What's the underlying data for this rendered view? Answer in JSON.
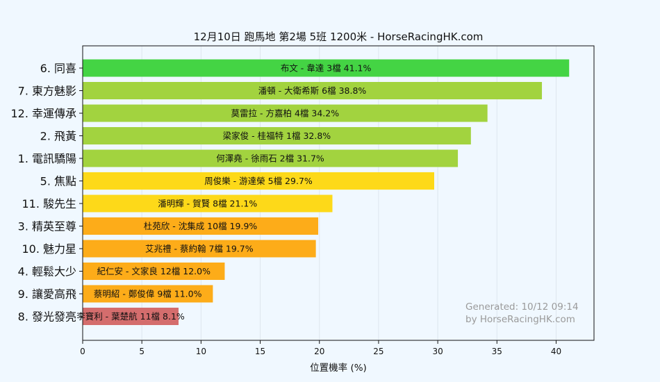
{
  "chart_data": {
    "type": "bar",
    "orientation": "horizontal",
    "title": "12月10日  跑馬地  第2場  5班  1200米 - HorseRacingHK.com",
    "xlabel": "位置機率 (%)",
    "ylabel": "",
    "xlim": [
      0,
      43.2
    ],
    "xticks": [
      0,
      5,
      10,
      15,
      20,
      25,
      30,
      35,
      40
    ],
    "grid": true,
    "categories": [
      "6. 同喜",
      "7. 東方魅影",
      "12. 幸運傳承",
      "2. 飛黃",
      "1. 電訊驕陽",
      "5. 焦點",
      "11. 駿先生",
      "3. 精英至尊",
      "10. 魅力星",
      "4. 輕鬆大少",
      "9. 讓愛高飛",
      "8. 發光發亮"
    ],
    "values": [
      41.1,
      38.8,
      34.2,
      32.8,
      31.7,
      29.7,
      21.1,
      19.9,
      19.7,
      12.0,
      11.0,
      8.1
    ],
    "bar_labels": [
      "布文 - 韋達 3檔  41.1%",
      "潘頓 - 大衛希斯 6檔  38.8%",
      "莫雷拉 - 方嘉柏 4檔  34.2%",
      "梁家俊 - 桂福特 1檔  32.8%",
      "何澤堯 - 徐雨石 2檔  31.7%",
      "周俊樂 - 游達榮 5檔  29.7%",
      "潘明輝 - 賀賢 8檔  21.1%",
      "杜苑欣 - 沈集成 10檔  19.9%",
      "艾兆禮 - 蔡約翰 7檔  19.7%",
      "紀仁安 - 文家良 12檔  12.0%",
      "蔡明紹 - 鄭俊偉 9檔  11.0%",
      "李寶利 - 葉楚航 11檔  8.1%"
    ],
    "colors": [
      "#44d444",
      "#a2d33f",
      "#a2d33f",
      "#a2d33f",
      "#a2d33f",
      "#fdd919",
      "#fdd919",
      "#fdac19",
      "#fdac19",
      "#fdac19",
      "#fdac19",
      "#d46d6d"
    ]
  },
  "watermark": {
    "line1": "Generated: 10/12 09:14",
    "line2": "by HorseRacingHK.com"
  }
}
